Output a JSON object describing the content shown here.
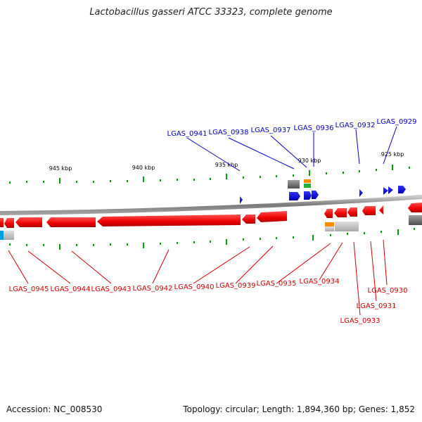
{
  "title": "Lactobacillus gasseri ATCC 33323, complete genome",
  "footer": {
    "accession": "Accession: NC_008530",
    "summary": "Topology: circular; Length: 1,894,360 bp; Genes: 1,852"
  },
  "colors": {
    "background": "#ffffff",
    "backbone": "#808080",
    "minus_strand_gene": "#ff0000",
    "plus_strand_gene": "#0000ff",
    "rna_gene": "#ff8c00",
    "pseudo_gene": "#808080",
    "other_feature": "#00a0e0",
    "tick": "#00a000",
    "top_label": "#0000c0",
    "bottom_label": "#d00000"
  },
  "scale_labels": [
    "945 kbp",
    "940 kbp",
    "935 kbp",
    "930 kbp",
    "925 kbp"
  ],
  "top_labels": [
    "LGAS_0941",
    "LGAS_0938",
    "LGAS_0937",
    "LGAS_0936",
    "LGAS_0932",
    "LGAS_0929"
  ],
  "bottom_labels": [
    "LGAS_0945",
    "LGAS_0944",
    "LGAS_0943",
    "LGAS_0942",
    "LGAS_0940",
    "LGAS_0939",
    "LGAS_0935",
    "LGAS_0934",
    "LGAS_0930",
    "LGAS_0931",
    "LGAS_0933"
  ]
}
